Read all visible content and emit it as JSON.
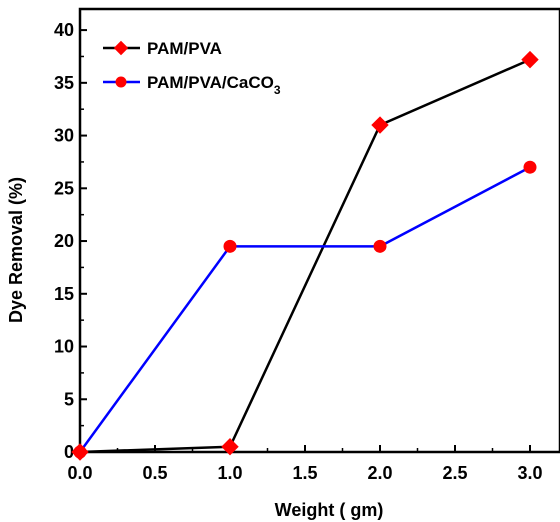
{
  "chart_data": {
    "type": "line",
    "xlabel": "Weight ( gm)",
    "ylabel": "Dye Removal  (%)",
    "xlim": [
      0,
      3.2
    ],
    "ylim": [
      0,
      42
    ],
    "xticks": [
      0.0,
      0.5,
      1.0,
      1.5,
      2.0,
      2.5,
      3.0
    ],
    "xtick_labels": [
      "0.0",
      "0.5",
      "1.0",
      "1.5",
      "2.0",
      "2.5",
      "3.0"
    ],
    "yticks": [
      0,
      5,
      10,
      15,
      20,
      25,
      30,
      35,
      40
    ],
    "ytick_labels": [
      "0",
      "5",
      "10",
      "15",
      "20",
      "25",
      "30",
      "35",
      "40"
    ],
    "grid": false,
    "legend_position": "top-left",
    "series": [
      {
        "name": "PAM/PVA",
        "legend_main": "PAM/PVA",
        "legend_sub": "",
        "line_color": "#000000",
        "marker_color": "#ff0000",
        "marker": "diamond",
        "x": [
          0.0,
          1.0,
          2.0,
          3.0
        ],
        "y": [
          0.0,
          0.5,
          31.0,
          37.2
        ]
      },
      {
        "name": "PAM/PVA/CaCO3",
        "legend_main": "PAM/PVA/CaCO",
        "legend_sub": "3",
        "line_color": "#0000ff",
        "marker_color": "#ff0000",
        "marker": "circle",
        "x": [
          0.0,
          1.0,
          2.0,
          3.0
        ],
        "y": [
          0.0,
          19.5,
          19.5,
          27.0
        ]
      }
    ]
  }
}
